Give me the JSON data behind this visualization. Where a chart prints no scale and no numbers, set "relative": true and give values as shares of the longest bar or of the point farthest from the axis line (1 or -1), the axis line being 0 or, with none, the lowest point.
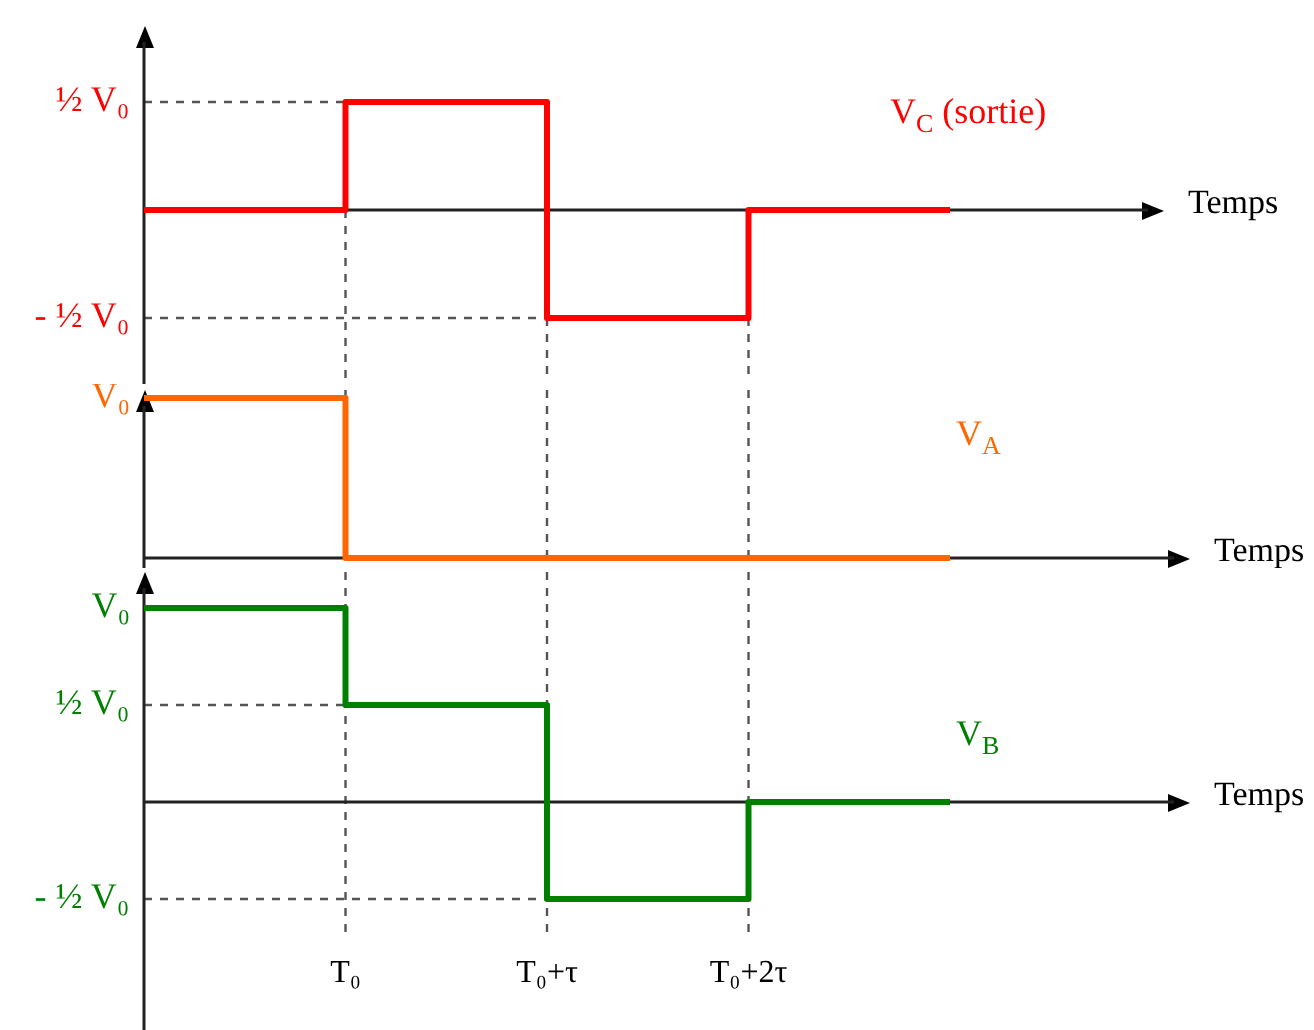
{
  "chart_data": [
    {
      "type": "step",
      "relative": true,
      "xlabel": "Temps",
      "categories": [
        null,
        null,
        null,
        null,
        null
      ],
      "marker": "none",
      "series": [
        {
          "name": "V$_{C}$ (sortie)",
          "color": "#ff0000",
          "values": [
            0,
            1,
            -1,
            0,
            0
          ]
        }
      ],
      "ref_lines": [
        {
          "axis": "y",
          "value": 1,
          "label": "½ V₀",
          "line_style": "dashed",
          "color": "#555555"
        },
        {
          "axis": "y",
          "value": -1,
          "label": "- ½ V₀",
          "line_style": "dashed",
          "color": "#555555"
        }
      ]
    },
    {
      "type": "step",
      "relative": true,
      "xlabel": "Temps",
      "categories": [
        null,
        null,
        null,
        null,
        null
      ],
      "grid": "x",
      "marker": "none",
      "series": [
        {
          "name": "V$_{A}$",
          "color": "#ff6600",
          "values": [
            1,
            0,
            0,
            0,
            0
          ]
        }
      ],
      "annotations": [
        "V₀"
      ]
    },
    {
      "type": "step",
      "relative": true,
      "xlabel": "Temps",
      "categories": [
        null,
        "T₀",
        "T₀+τ",
        "T₀+2τ",
        null
      ],
      "grid": "x",
      "marker": "none",
      "series": [
        {
          "name": "V$_{B}$",
          "color": "#008000",
          "values": [
            1,
            0.5,
            -0.5,
            0,
            0
          ]
        }
      ],
      "ref_lines": [
        {
          "axis": "y",
          "value": 0.5,
          "label": "½ V₀",
          "line_style": "dashed",
          "color": "#555555"
        },
        {
          "axis": "y",
          "value": -0.5,
          "label": "- ½ V₀",
          "line_style": "dashed",
          "color": "#555555"
        }
      ],
      "annotations": [
        "V₀"
      ]
    }
  ]
}
